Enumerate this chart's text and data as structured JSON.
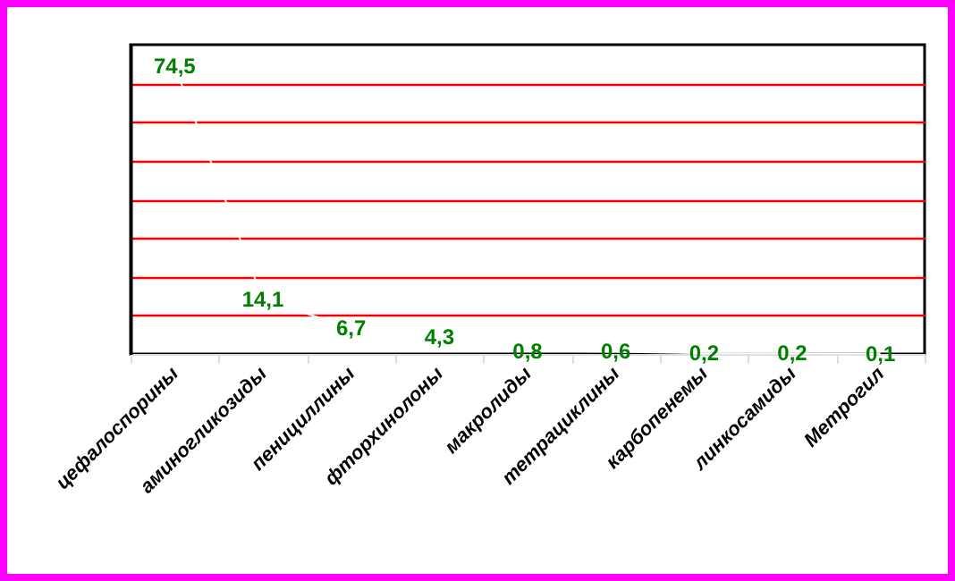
{
  "chart_data": {
    "type": "line",
    "categories": [
      "цефалоспорины",
      "аминогликозиды",
      "пенициллины",
      "фторхинолоны",
      "макролиды",
      "тетрациклины",
      "карбопенемы",
      "линкосамиды",
      "Метрогил"
    ],
    "series": [
      {
        "color": "#ffffff",
        "values": [
          74.5,
          14.1,
          6.7,
          4.3,
          0.8,
          0.6,
          0.2,
          0.2,
          0.1
        ],
        "value_labels": [
          "74,5",
          "14,1",
          "6,7",
          "4,3",
          "0,8",
          "0,6",
          "0,2",
          "0,2",
          "0,1"
        ]
      }
    ],
    "ylim": [
      0,
      80
    ],
    "yticks": [
      {
        "value": 10,
        "label": null
      },
      {
        "value": 20,
        "label": null
      },
      {
        "value": 30,
        "label": null
      },
      {
        "value": 40,
        "label": null
      },
      {
        "value": 50,
        "label": null
      },
      {
        "value": 60,
        "label": null
      },
      {
        "value": 70,
        "label": null
      }
    ],
    "grid": "y",
    "tick_labels": "x",
    "marker": "none"
  }
}
